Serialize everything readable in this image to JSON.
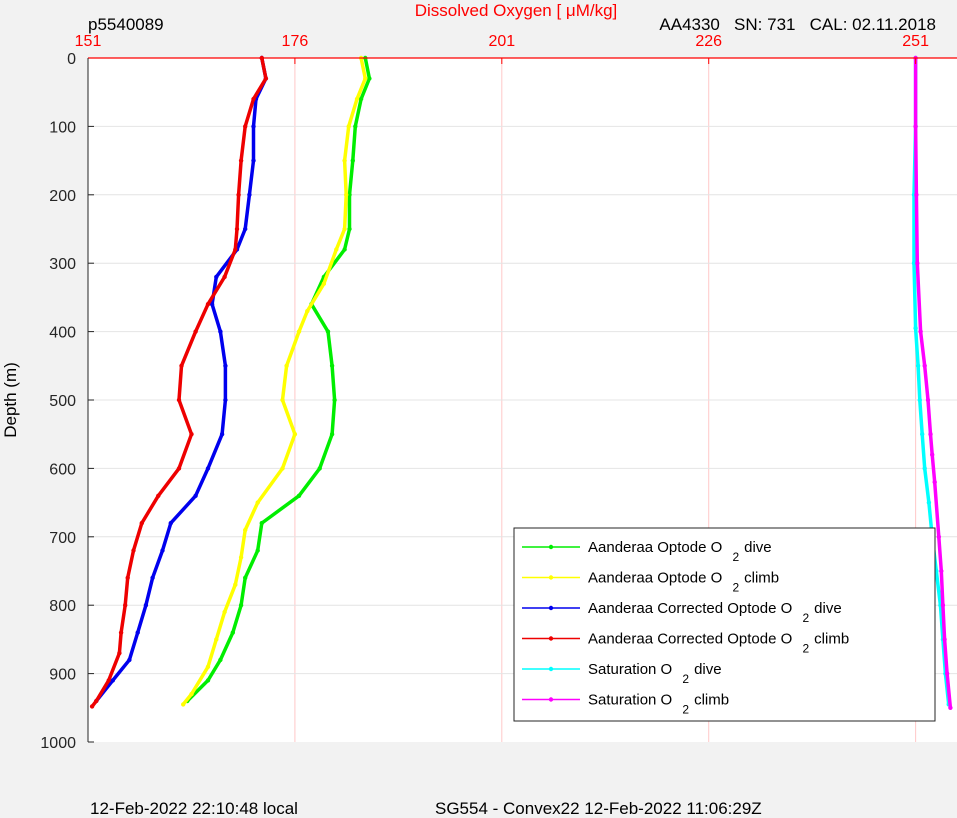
{
  "header": {
    "left": "p5540089",
    "right": "AA4330   SN: 731   CAL: 02.11.2018"
  },
  "footer": {
    "left": "12-Feb-2022 22:10:48 local",
    "center": "SG554 - Convex22 12-Feb-2022 11:06:29Z"
  },
  "chart_data": {
    "type": "line",
    "title": "",
    "xlabel": "Dissolved Oxygen [    μM/kg]",
    "ylabel": "Depth (m)",
    "xlim": [
      151,
      256
    ],
    "ylim": [
      1000,
      0
    ],
    "y_reversed": true,
    "x_axis_position": "top",
    "xticks": [
      "151",
      "176",
      "201",
      "226",
      "251"
    ],
    "yticks": [
      "0",
      "100",
      "200",
      "300",
      "400",
      "500",
      "600",
      "700",
      "800",
      "900",
      "1000"
    ],
    "grid": true,
    "legend_position": "bottom-right",
    "colors": {
      "x_axis": "#ff0000",
      "optode_dive": "#00ee00",
      "optode_climb": "#ffff00",
      "corrected_dive": "#0000ee",
      "corrected_climb": "#ee0000",
      "saturation_dive": "#00ffff",
      "saturation_climb": "#ff00ff"
    },
    "series": [
      {
        "name_text": "Aanderaa Optode O",
        "name_sub": "2",
        "name_suffix": "dive",
        "color": "#00ee00",
        "points": [
          [
            184.5,
            0
          ],
          [
            185,
            30
          ],
          [
            184,
            60
          ],
          [
            183.3,
            100
          ],
          [
            183,
            150
          ],
          [
            182.6,
            200
          ],
          [
            182.6,
            250
          ],
          [
            182,
            280
          ],
          [
            179.5,
            320
          ],
          [
            178,
            360
          ],
          [
            180,
            400
          ],
          [
            180.5,
            450
          ],
          [
            180.8,
            500
          ],
          [
            180.5,
            550
          ],
          [
            179,
            600
          ],
          [
            176.5,
            640
          ],
          [
            172,
            680
          ],
          [
            171.5,
            720
          ],
          [
            170,
            760
          ],
          [
            169.5,
            800
          ],
          [
            168.5,
            840
          ],
          [
            167,
            880
          ],
          [
            165.5,
            910
          ],
          [
            163,
            940
          ]
        ]
      },
      {
        "name_text": "Aanderaa Optode O",
        "name_sub": "2",
        "name_suffix": "climb",
        "color": "#ffff00",
        "points": [
          [
            184,
            0
          ],
          [
            184.5,
            30
          ],
          [
            183.5,
            60
          ],
          [
            182.5,
            100
          ],
          [
            182,
            150
          ],
          [
            182.2,
            200
          ],
          [
            182,
            250
          ],
          [
            181,
            280
          ],
          [
            179.5,
            330
          ],
          [
            177.5,
            370
          ],
          [
            176.5,
            400
          ],
          [
            175,
            450
          ],
          [
            174.5,
            500
          ],
          [
            176,
            550
          ],
          [
            174.5,
            600
          ],
          [
            171.5,
            650
          ],
          [
            170,
            690
          ],
          [
            169.5,
            730
          ],
          [
            168.8,
            770
          ],
          [
            167.5,
            810
          ],
          [
            166.5,
            850
          ],
          [
            165.5,
            890
          ],
          [
            163.5,
            930
          ],
          [
            162.5,
            945
          ]
        ]
      },
      {
        "name_text": "Aanderaa Corrected Optode O",
        "name_sub": "2",
        "name_suffix": "dive",
        "color": "#0000ee",
        "points": [
          [
            172,
            0
          ],
          [
            172.5,
            30
          ],
          [
            171.3,
            60
          ],
          [
            171,
            100
          ],
          [
            171,
            150
          ],
          [
            170.5,
            200
          ],
          [
            170,
            250
          ],
          [
            169,
            280
          ],
          [
            166.5,
            320
          ],
          [
            166,
            360
          ],
          [
            167,
            400
          ],
          [
            167.6,
            450
          ],
          [
            167.6,
            500
          ],
          [
            167.2,
            550
          ],
          [
            165.5,
            600
          ],
          [
            164,
            640
          ],
          [
            161,
            680
          ],
          [
            160,
            720
          ],
          [
            158.8,
            760
          ],
          [
            158,
            800
          ],
          [
            157,
            840
          ],
          [
            156,
            880
          ],
          [
            154,
            910
          ],
          [
            152,
            940
          ]
        ]
      },
      {
        "name_text": "Aanderaa Corrected Optode O",
        "name_sub": "2",
        "name_suffix": "climb",
        "color": "#ee0000",
        "points": [
          [
            172,
            0
          ],
          [
            172.5,
            30
          ],
          [
            171,
            60
          ],
          [
            170,
            100
          ],
          [
            169.5,
            150
          ],
          [
            169.2,
            200
          ],
          [
            169,
            250
          ],
          [
            168.8,
            280
          ],
          [
            167.5,
            320
          ],
          [
            165.5,
            360
          ],
          [
            164,
            400
          ],
          [
            162.3,
            450
          ],
          [
            162,
            500
          ],
          [
            163.5,
            550
          ],
          [
            162,
            600
          ],
          [
            159.5,
            640
          ],
          [
            157.5,
            680
          ],
          [
            156.5,
            720
          ],
          [
            155.8,
            760
          ],
          [
            155.5,
            800
          ],
          [
            155,
            840
          ],
          [
            154.8,
            870
          ],
          [
            153.5,
            910
          ],
          [
            152,
            940
          ],
          [
            151.5,
            948
          ]
        ]
      },
      {
        "name_text": "Saturation O",
        "name_sub": "2",
        "name_suffix": "dive",
        "color": "#00ffff",
        "points": [
          [
            251,
            0
          ],
          [
            251,
            100
          ],
          [
            250.8,
            200
          ],
          [
            250.8,
            300
          ],
          [
            251,
            395
          ],
          [
            251.3,
            450
          ],
          [
            251.5,
            500
          ],
          [
            251.8,
            550
          ],
          [
            252.1,
            600
          ],
          [
            252.6,
            650
          ],
          [
            253,
            700
          ],
          [
            253.5,
            750
          ],
          [
            254,
            800
          ],
          [
            254.3,
            850
          ],
          [
            254.6,
            900
          ],
          [
            255,
            945
          ]
        ]
      },
      {
        "name_text": "Saturation O",
        "name_sub": "2",
        "name_suffix": "climb",
        "color": "#ff00ff",
        "points": [
          [
            251,
            0
          ],
          [
            251,
            100
          ],
          [
            251.1,
            200
          ],
          [
            251.2,
            300
          ],
          [
            251.6,
            400
          ],
          [
            252.1,
            450
          ],
          [
            252.5,
            500
          ],
          [
            252.8,
            550
          ],
          [
            253,
            580
          ],
          [
            253.3,
            620
          ],
          [
            253.8,
            700
          ],
          [
            254.1,
            750
          ],
          [
            254.3,
            800
          ],
          [
            254.5,
            850
          ],
          [
            254.8,
            900
          ],
          [
            255.2,
            950
          ]
        ]
      }
    ]
  }
}
